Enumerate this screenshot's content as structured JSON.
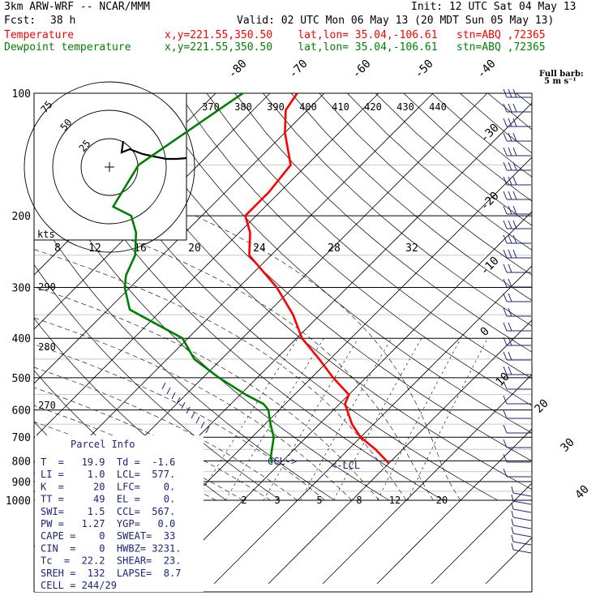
{
  "header": {
    "model": "3km ARW-WRF -- NCAR/MMM",
    "init": "Init: 12 UTC Sat 04 May 13",
    "fcst_label": "Fcst:",
    "fcst_value": "38 h",
    "valid": "Valid: 02 UTC Mon 06 May 13 (20 MDT Sun 05 May 13)",
    "temp_label": "Temperature",
    "dew_label": "Dewpoint temperature",
    "temp_loc": "x,y=221.55,350.50    lat,lon= 35.04,-106.61   stn=ABQ ,72365",
    "dew_loc": "x,y=221.55,350.50    lat,lon= 35.04,-106.61   stn=ABQ ,72365"
  },
  "colors": {
    "temperature": "#ff0000",
    "dewpoint": "#008000",
    "info": "#1a237e",
    "grid": "#000000"
  },
  "chart_data": {
    "type": "line",
    "title": "",
    "yscale": "log-pressure",
    "pressure_ticks": [
      "100",
      "200",
      "300",
      "400",
      "500",
      "600",
      "700",
      "800",
      "900",
      "1000"
    ],
    "isotherm_labels": [
      "-80",
      "-70",
      "-60",
      "-50",
      "-40",
      "-30",
      "-20",
      "-10",
      "0",
      "10",
      "20",
      "30",
      "40"
    ],
    "theta_labels": [
      "370",
      "380",
      "390",
      "400",
      "410",
      "420",
      "430",
      "440"
    ],
    "theta_left_labels": [
      "290",
      "280",
      "270"
    ],
    "mixing_labels_upper": [
      "8",
      "12",
      "16",
      "20",
      "24",
      "28",
      "32"
    ],
    "mixing_labels_lower": [
      "2",
      "3",
      "5",
      "8",
      "12",
      "20"
    ],
    "lcl_marker": "<-LCL",
    "ccl_marker": "CCL->",
    "hodograph": {
      "units_label": "kts",
      "ring_labels": [
        "25",
        "50",
        "75"
      ]
    },
    "barb_legend": {
      "line1": "Full barb:",
      "line2": "5 m s⁻¹"
    },
    "series": [
      {
        "name": "Temperature",
        "pressure": [
          100,
          110,
          125,
          150,
          175,
          200,
          220,
          250,
          300,
          350,
          400,
          450,
          500,
          550,
          580,
          650,
          700,
          750,
          810
        ],
        "temperature": [
          -65,
          -64,
          -60,
          -53,
          -52,
          -52,
          -48,
          -44,
          -33,
          -25,
          -19,
          -12,
          -6,
          0,
          1,
          6,
          10,
          15,
          19.9
        ]
      },
      {
        "name": "Dewpoint temperature",
        "pressure": [
          100,
          150,
          190,
          200,
          220,
          250,
          280,
          300,
          340,
          400,
          450,
          500,
          550,
          580,
          600,
          650,
          700,
          780,
          810
        ],
        "temperature": [
          -75,
          -81,
          -78,
          -73,
          -69,
          -65,
          -63,
          -61,
          -56,
          -41,
          -35,
          -27,
          -19,
          -14,
          -12,
          -9,
          -6,
          -3,
          -1.6
        ]
      }
    ]
  },
  "parcel_info": {
    "title": "Parcel Info",
    "rows": [
      "T  =   19.9  Td =  -1.6",
      "LI =    1.0  LCL=  577.",
      "K  =     20  LFC=    0.",
      "TT =     49  EL =    0.",
      "SWI=    1.5  CCL=  567.",
      "PW =   1.27  YGP=   0.0",
      "CAPE =    0  SWEAT=  33",
      "CIN  =    0  HWBZ= 3231.",
      "Tc  =  22.2  SHEAR=  23.",
      "SREH =  132  LAPSE=  8.7",
      "CELL = 244/29"
    ]
  }
}
